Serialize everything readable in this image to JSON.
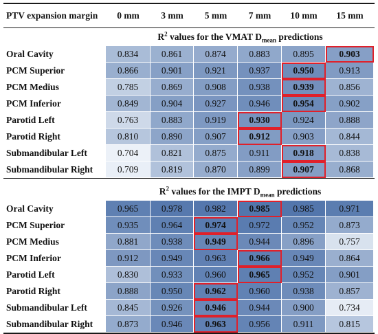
{
  "header": {
    "row_label": "PTV expansion margin",
    "columns": [
      "0 mm",
      "3 mm",
      "5 mm",
      "7 mm",
      "10 mm",
      "15 mm"
    ]
  },
  "vmat": {
    "title_prefix": "R",
    "title_sup": "2",
    "title_mid": " values for the VMAT D",
    "title_sub": "mean",
    "title_suffix": " predictions",
    "rows": [
      {
        "label": "Oral Cavity",
        "values": [
          "0.834",
          "0.861",
          "0.874",
          "0.883",
          "0.895",
          "0.903"
        ],
        "best": 5
      },
      {
        "label": "PCM Superior",
        "values": [
          "0.866",
          "0.901",
          "0.921",
          "0.937",
          "0.950",
          "0.913"
        ],
        "best": 4
      },
      {
        "label": "PCM Medius",
        "values": [
          "0.785",
          "0.869",
          "0.908",
          "0.938",
          "0.939",
          "0.856"
        ],
        "best": 4
      },
      {
        "label": "PCM Inferior",
        "values": [
          "0.849",
          "0.904",
          "0.927",
          "0.946",
          "0.954",
          "0.902"
        ],
        "best": 4
      },
      {
        "label": "Parotid Left",
        "values": [
          "0.763",
          "0.883",
          "0.919",
          "0.930",
          "0.924",
          "0.888"
        ],
        "best": 3
      },
      {
        "label": "Parotid Right",
        "values": [
          "0.810",
          "0.890",
          "0.907",
          "0.912",
          "0.903",
          "0.844"
        ],
        "best": 3
      },
      {
        "label": "Submandibular Left",
        "values": [
          "0.704",
          "0.821",
          "0.875",
          "0.911",
          "0.918",
          "0.838"
        ],
        "best": 4
      },
      {
        "label": "Submandibular Right",
        "values": [
          "0.709",
          "0.819",
          "0.870",
          "0.899",
          "0.907",
          "0.868"
        ],
        "best": 4
      }
    ]
  },
  "impt": {
    "title_prefix": "R",
    "title_sup": "2",
    "title_mid": " values for the IMPT D",
    "title_sub": "mean",
    "title_suffix": " predictions",
    "rows": [
      {
        "label": "Oral Cavity",
        "values": [
          "0.965",
          "0.978",
          "0.982",
          "0.985",
          "0.985",
          "0.971"
        ],
        "best": 3
      },
      {
        "label": "PCM Superior",
        "values": [
          "0.935",
          "0.964",
          "0.974",
          "0.972",
          "0.952",
          "0.873"
        ],
        "best": 2
      },
      {
        "label": "PCM Medius",
        "values": [
          "0.881",
          "0.938",
          "0.949",
          "0.944",
          "0.896",
          "0.757"
        ],
        "best": 2
      },
      {
        "label": "PCM Inferior",
        "values": [
          "0.912",
          "0.949",
          "0.963",
          "0.966",
          "0.949",
          "0.864"
        ],
        "best": 3
      },
      {
        "label": "Parotid Left",
        "values": [
          "0.830",
          "0.933",
          "0.960",
          "0.965",
          "0.952",
          "0.901"
        ],
        "best": 3
      },
      {
        "label": "Parotid Right",
        "values": [
          "0.888",
          "0.950",
          "0.962",
          "0.960",
          "0.938",
          "0.857"
        ],
        "best": 2
      },
      {
        "label": "Submandibular Left",
        "values": [
          "0.845",
          "0.926",
          "0.946",
          "0.944",
          "0.900",
          "0.734"
        ],
        "best": 2
      },
      {
        "label": "Submandibular Right",
        "values": [
          "0.873",
          "0.946",
          "0.963",
          "0.956",
          "0.911",
          "0.815"
        ],
        "best": 2
      }
    ]
  },
  "colors": {
    "highlight_border": "#e0202a",
    "heat_low": "#eef3f9",
    "heat_high": "#4a6fa8"
  }
}
